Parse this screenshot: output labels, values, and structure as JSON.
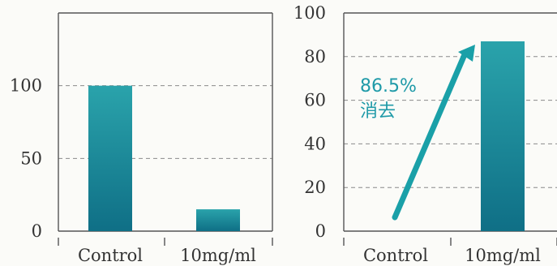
{
  "colors": {
    "bar_top": "#2aa3ab",
    "bar_bottom": "#0f6f86",
    "arrow": "#1aa0a8",
    "annotation_text": "#1f9aa8",
    "axis": "#555555",
    "grid": "#8a8a8a",
    "tick_text": "#333333"
  },
  "chart_data": [
    {
      "type": "bar",
      "categories": [
        "Control",
        "10mg/ml"
      ],
      "values": [
        100,
        15
      ],
      "ylim": [
        0,
        150
      ],
      "yticks": [
        "0",
        "50",
        "100"
      ],
      "ytick_values": [
        0,
        50,
        100
      ],
      "grid": true
    },
    {
      "type": "bar",
      "categories": [
        "Control",
        "10mg/ml"
      ],
      "values": [
        0,
        87
      ],
      "ylim": [
        0,
        100
      ],
      "yticks": [
        "0",
        "20",
        "40",
        "60",
        "80",
        "100"
      ],
      "ytick_values": [
        0,
        20,
        40,
        60,
        80,
        100
      ],
      "grid": true,
      "annotation": {
        "value_text": "86.5%",
        "label_text": "消去",
        "arrow": "up-right"
      }
    }
  ]
}
